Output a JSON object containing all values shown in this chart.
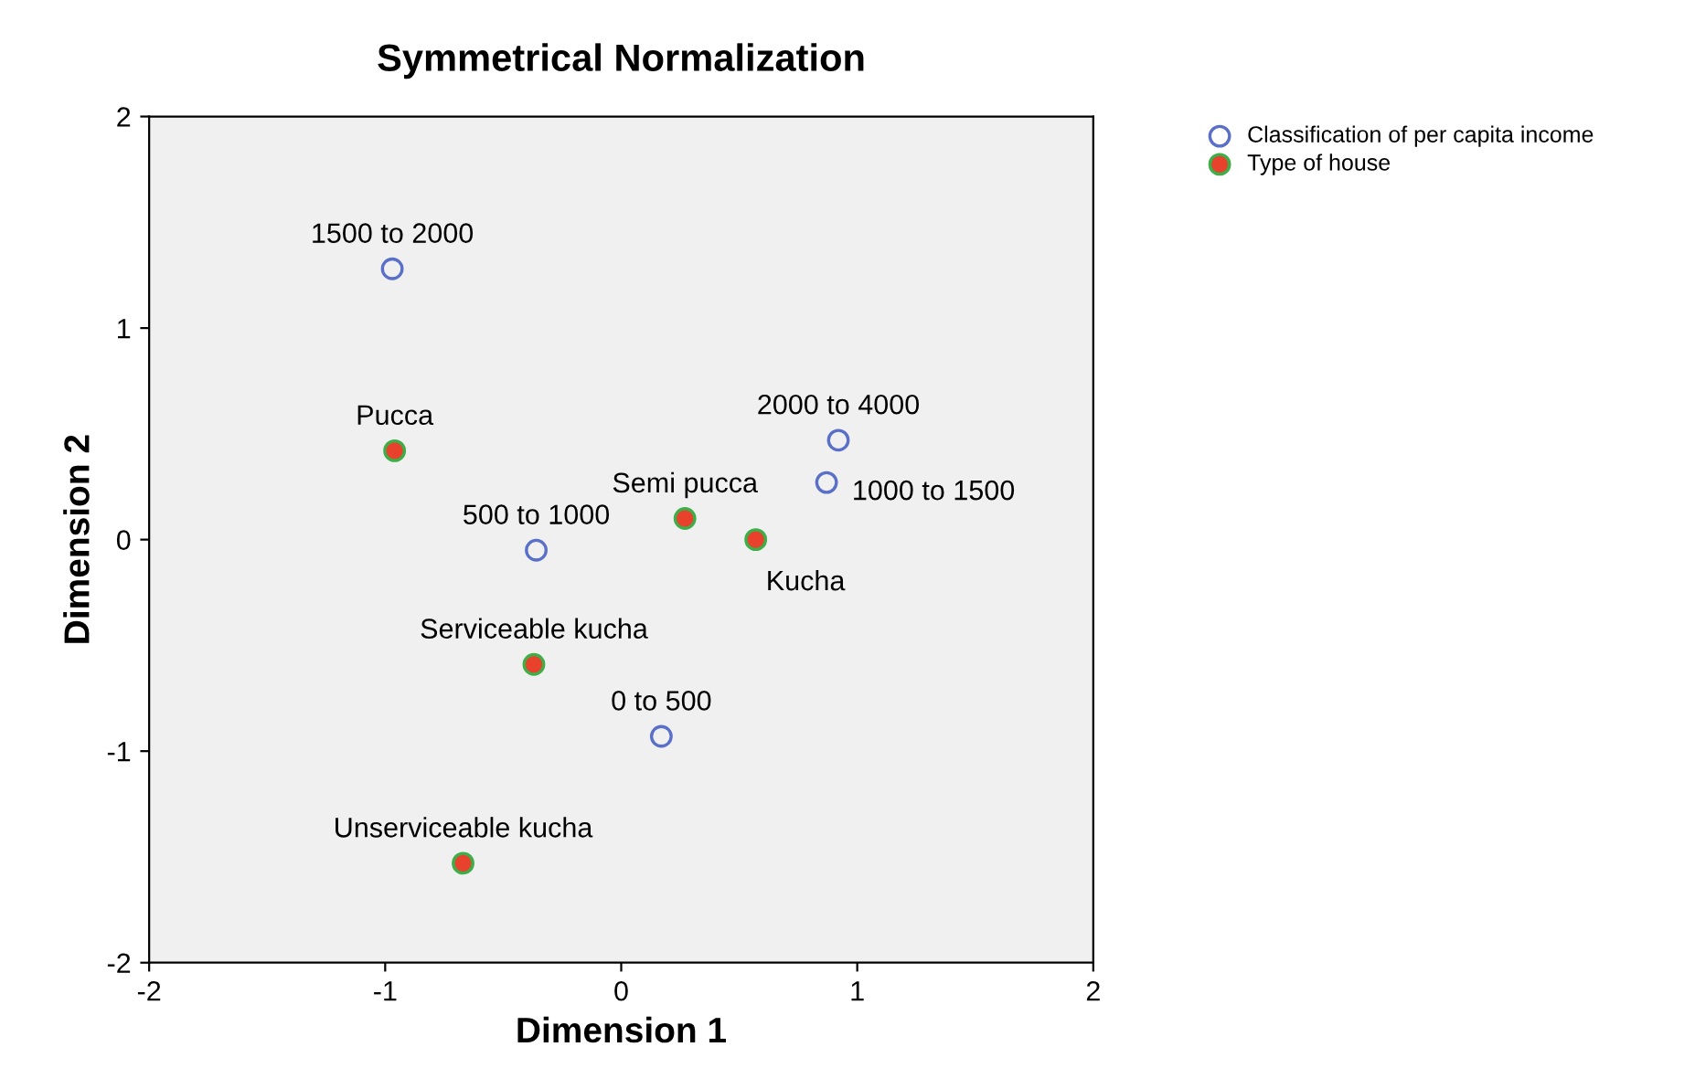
{
  "chart_data": {
    "type": "scatter",
    "title": "Symmetrical Normalization",
    "xlabel": "Dimension 1",
    "ylabel": "Dimension 2",
    "xlim": [
      -2,
      2
    ],
    "ylim": [
      -2,
      2
    ],
    "xticks": [
      -2,
      -1,
      0,
      1,
      2
    ],
    "yticks": [
      -2,
      -1,
      0,
      1,
      2
    ],
    "grid": false,
    "legend": "top right",
    "marker": "circle",
    "series": [
      {
        "name": "Classification of per capita income",
        "color": "#5a6fc8",
        "x": [
          -0.97,
          0.92,
          0.87,
          -0.36,
          0.17
        ],
        "values": [
          1.28,
          0.47,
          0.27,
          -0.05,
          -0.93
        ]
      },
      {
        "name": "Type of house",
        "color": "#e8412c",
        "x": [
          -0.96,
          0.27,
          0.57,
          -0.37,
          -0.67
        ],
        "values": [
          0.42,
          0.1,
          0.0,
          -0.59,
          -1.53
        ]
      }
    ],
    "annotations": [
      {
        "text": "1500 to 2000",
        "x": -0.97,
        "y": 1.28
      },
      {
        "text": "2000 to 4000",
        "x": 0.92,
        "y": 0.47
      },
      {
        "text": "1000 to 1500",
        "x": 0.87,
        "y": 0.27
      },
      {
        "text": "500 to 1000",
        "x": -0.36,
        "y": -0.05
      },
      {
        "text": "0 to 500",
        "x": 0.17,
        "y": -0.93
      },
      {
        "text": "Pucca",
        "x": -0.96,
        "y": 0.42
      },
      {
        "text": "Semi pucca",
        "x": 0.27,
        "y": 0.1
      },
      {
        "text": "Kucha",
        "x": 0.57,
        "y": 0.0
      },
      {
        "text": "Serviceable kucha",
        "x": -0.37,
        "y": -0.59
      },
      {
        "text": "Unserviceable kucha",
        "x": -0.67,
        "y": -1.53
      }
    ]
  }
}
